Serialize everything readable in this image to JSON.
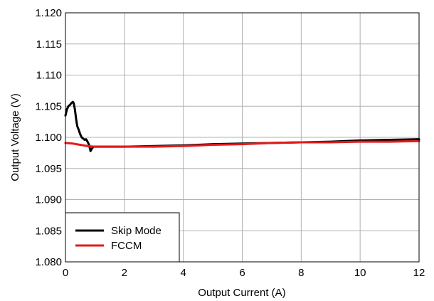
{
  "chart_data": {
    "type": "line",
    "title": "",
    "xlabel": "Output Current  (A)",
    "ylabel": "Output Voltage (V)",
    "xlim": [
      0,
      12
    ],
    "ylim": [
      1.08,
      1.12
    ],
    "xticks": [
      "0",
      "2",
      "4",
      "6",
      "8",
      "10",
      "12"
    ],
    "yticks": [
      "1.080",
      "1.085",
      "1.090",
      "1.095",
      "1.100",
      "1.105",
      "1.110",
      "1.115",
      "1.120"
    ],
    "grid": true,
    "legend_position": "bottom-left",
    "series": [
      {
        "name": "Skip Mode",
        "color": "#000000",
        "x": [
          0,
          0.05,
          0.1,
          0.15,
          0.2,
          0.25,
          0.28,
          0.32,
          0.36,
          0.4,
          0.45,
          0.5,
          0.55,
          0.6,
          0.65,
          0.7,
          0.75,
          0.8,
          0.85,
          0.9,
          0.95,
          1.0,
          1.5,
          2,
          3,
          4,
          5,
          6,
          7,
          8,
          9,
          10,
          11,
          12
        ],
        "y": [
          1.1035,
          1.1045,
          1.105,
          1.1052,
          1.1055,
          1.1057,
          1.1055,
          1.1045,
          1.103,
          1.1018,
          1.1012,
          1.1005,
          1.1,
          1.0998,
          1.0996,
          1.0997,
          1.0993,
          1.0988,
          1.0978,
          1.0982,
          1.0985,
          1.0985,
          1.0985,
          1.0985,
          1.0986,
          1.0987,
          1.0989,
          1.099,
          1.0991,
          1.0992,
          1.0993,
          1.0995,
          1.0996,
          1.0997
        ]
      },
      {
        "name": "FCCM",
        "color": "#e31a1c",
        "x": [
          0,
          0.25,
          0.5,
          0.75,
          1.0,
          1.5,
          2,
          3,
          4,
          5,
          6,
          7,
          8,
          9,
          10,
          11,
          12
        ],
        "y": [
          1.0991,
          1.099,
          1.0988,
          1.0986,
          1.0985,
          1.0985,
          1.0985,
          1.0985,
          1.0986,
          1.0988,
          1.0989,
          1.0991,
          1.0992,
          1.0992,
          1.0993,
          1.0993,
          1.0994
        ]
      }
    ]
  }
}
